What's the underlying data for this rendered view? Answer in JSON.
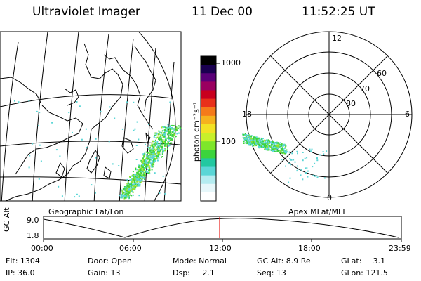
{
  "header": {
    "instrument": "Ultraviolet Imager",
    "date": "11 Dec 00",
    "time": "11:52:25 UT"
  },
  "map_panel": {
    "caption": "Geographic Lat/Lon"
  },
  "colorbar": {
    "unit_label": "photon cm⁻²s⁻¹",
    "ticks": [
      "1000",
      "100"
    ],
    "colors": [
      "#000000",
      "#1a0050",
      "#5a0078",
      "#9a0060",
      "#c8001e",
      "#e8301a",
      "#f47a1a",
      "#f5b21e",
      "#f2e225",
      "#c8f02a",
      "#7ee62a",
      "#3cd43c",
      "#22c8a0",
      "#5ad6d6",
      "#b4ecf0",
      "#e6f7fa",
      "#ffffff"
    ]
  },
  "polar_panel": {
    "caption": "Apex MLat/MLT",
    "mlt_labels": [
      "12",
      "18",
      "6",
      "0"
    ],
    "lat_labels": [
      "60",
      "70",
      "80"
    ]
  },
  "orbit_plot": {
    "ylabel": "GC Alt",
    "yticks": [
      "9.0",
      "1.8"
    ],
    "xticks": [
      "00:00",
      "06:00",
      "12:00",
      "18:00",
      "23:59"
    ],
    "marker_time": "11:52",
    "marker_color": "#e8201a"
  },
  "info": {
    "flt": "Flt: 1304",
    "door": "Door: Open",
    "mode": "Mode: Normal",
    "gc_alt": "GC Alt: 8.9 Re",
    "glat": "GLat:  −3.1",
    "ip": "IP: 36.0",
    "gain": "Gain: 13",
    "dsp": "Dsp:     2.1",
    "seq": "Seq: 13",
    "glon": "GLon: 121.5"
  },
  "aurora_colors": {
    "low": "#5ad6d6",
    "mid": "#3cd43c",
    "high": "#9be22a"
  }
}
